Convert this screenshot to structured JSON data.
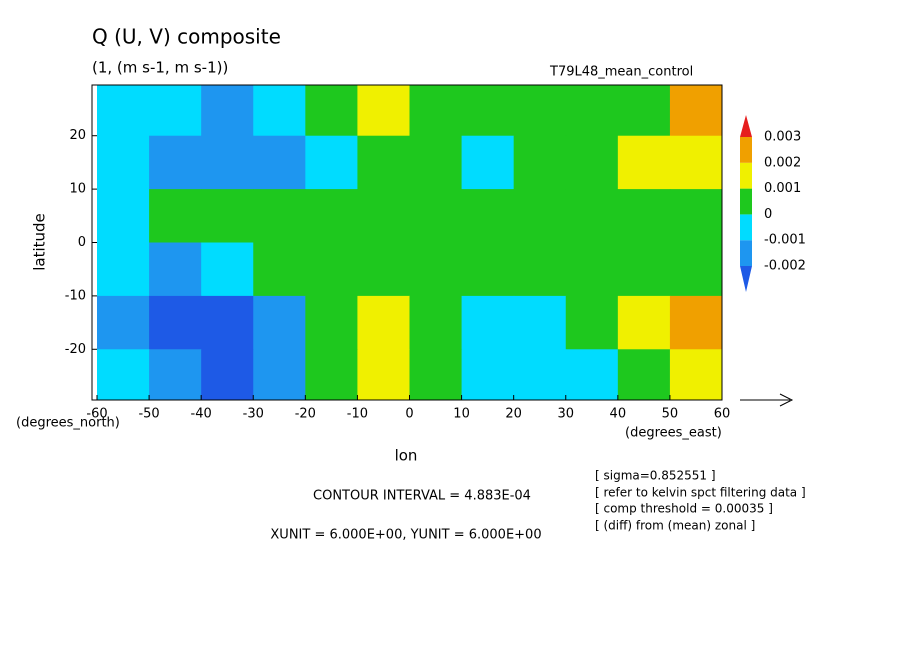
{
  "chart_data": {
    "type": "contour",
    "title": "Q (U, V) composite",
    "subtitle": "(1, (m s-1, m s-1))",
    "x_label": "lon",
    "y_label": "latitude",
    "x_unit": "(degrees_east)",
    "y_unit": "(degrees_north)",
    "annotations": {
      "run": "T79L48_mean_control",
      "contour_interval": "CONTOUR INTERVAL = 4.883E-04",
      "units": "XUNIT = 6.000E+00, YUNIT = 6.000E+00",
      "notes": [
        "[ sigma=0.852551 ]",
        "[ refer to kelvin spct filtering data ]",
        "[ comp threshold = 0.00035 ]",
        "[ (diff) from (mean) zonal ]"
      ]
    },
    "xlim": [
      -60,
      60
    ],
    "ylim": [
      -29.5,
      29.5
    ],
    "xticks": [
      -60,
      -50,
      -40,
      -30,
      -20,
      -10,
      0,
      10,
      20,
      30,
      40,
      50,
      60
    ],
    "yticks": [
      -20,
      -10,
      0,
      10,
      20
    ],
    "x": [
      -55,
      -45,
      -35,
      -25,
      -15,
      -5,
      5,
      15,
      25,
      35,
      45,
      55
    ],
    "y": [
      25,
      15,
      5,
      -5,
      -15,
      -25
    ],
    "z": [
      [
        -0.0005,
        -0.0005,
        -0.0015,
        -0.0005,
        0.0005,
        0.0015,
        0.0005,
        0.0005,
        0.0005,
        0.0005,
        0.0005,
        0.0025
      ],
      [
        -0.0005,
        -0.0015,
        -0.0015,
        -0.0015,
        -0.0005,
        0.0005,
        0.0005,
        -0.0005,
        0.0005,
        0.0005,
        0.0015,
        0.0015
      ],
      [
        -0.0005,
        0.0005,
        0.0005,
        0.0005,
        0.0005,
        0.0005,
        0.0005,
        0.0005,
        0.0005,
        0.0005,
        0.0005,
        0.0005
      ],
      [
        -0.0005,
        -0.0015,
        -0.0005,
        0.0005,
        0.0005,
        0.0005,
        0.0005,
        0.0005,
        0.0005,
        0.0005,
        0.0005,
        0.0005
      ],
      [
        -0.0015,
        -0.0025,
        -0.0025,
        -0.0015,
        0.0005,
        0.0015,
        0.0005,
        -0.0005,
        -0.0005,
        0.0005,
        0.0015,
        0.0025
      ],
      [
        -0.0005,
        -0.0015,
        -0.0025,
        -0.0015,
        0.0005,
        0.0015,
        0.0005,
        -0.0005,
        -0.0005,
        -0.0005,
        0.0005,
        0.0015
      ]
    ],
    "levels": [
      -0.002,
      -0.001,
      0,
      0.001,
      0.002,
      0.003
    ],
    "colors": [
      "#1e5ae6",
      "#1e96f0",
      "#00dcff",
      "#1ec81e",
      "#f0f000",
      "#f0a000",
      "#e61e1e"
    ]
  }
}
